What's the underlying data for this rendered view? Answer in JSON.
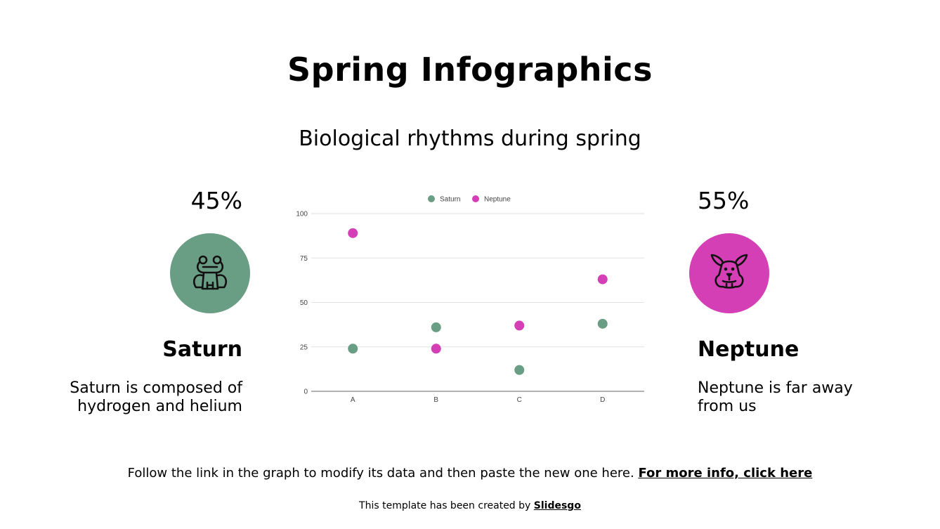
{
  "slide": {
    "title": "Spring Infographics",
    "subtitle": "Biological rhythms during spring"
  },
  "left_panel": {
    "percent": "45%",
    "name": "Saturn",
    "description_line1": "Saturn is composed of",
    "description_line2": "hydrogen and helium",
    "icon": "frog-icon",
    "color": "#6a9e84"
  },
  "right_panel": {
    "percent": "55%",
    "name": "Neptune",
    "description_line1": "Neptune is far away",
    "description_line2": "from us",
    "icon": "rabbit-icon",
    "color": "#d43fb6"
  },
  "footer": {
    "instruction": "Follow the link in the graph to modify its data and then paste the new one here.",
    "link_label": "For more info, click here",
    "credit": "This template has been created by",
    "credit_link": "Slidesgo"
  },
  "chart_data": {
    "type": "scatter",
    "title": "",
    "xlabel": "",
    "ylabel": "",
    "categories": [
      "A",
      "B",
      "C",
      "D"
    ],
    "series": [
      {
        "name": "Saturn",
        "color": "#6a9e84",
        "values": [
          24,
          36,
          12,
          38
        ]
      },
      {
        "name": "Neptune",
        "color": "#d43fb6",
        "values": [
          89,
          24,
          37,
          63
        ]
      }
    ],
    "ylim": [
      0,
      100
    ],
    "yticks": [
      0,
      25,
      50,
      75,
      100
    ],
    "grid": true,
    "legend_position": "top"
  }
}
